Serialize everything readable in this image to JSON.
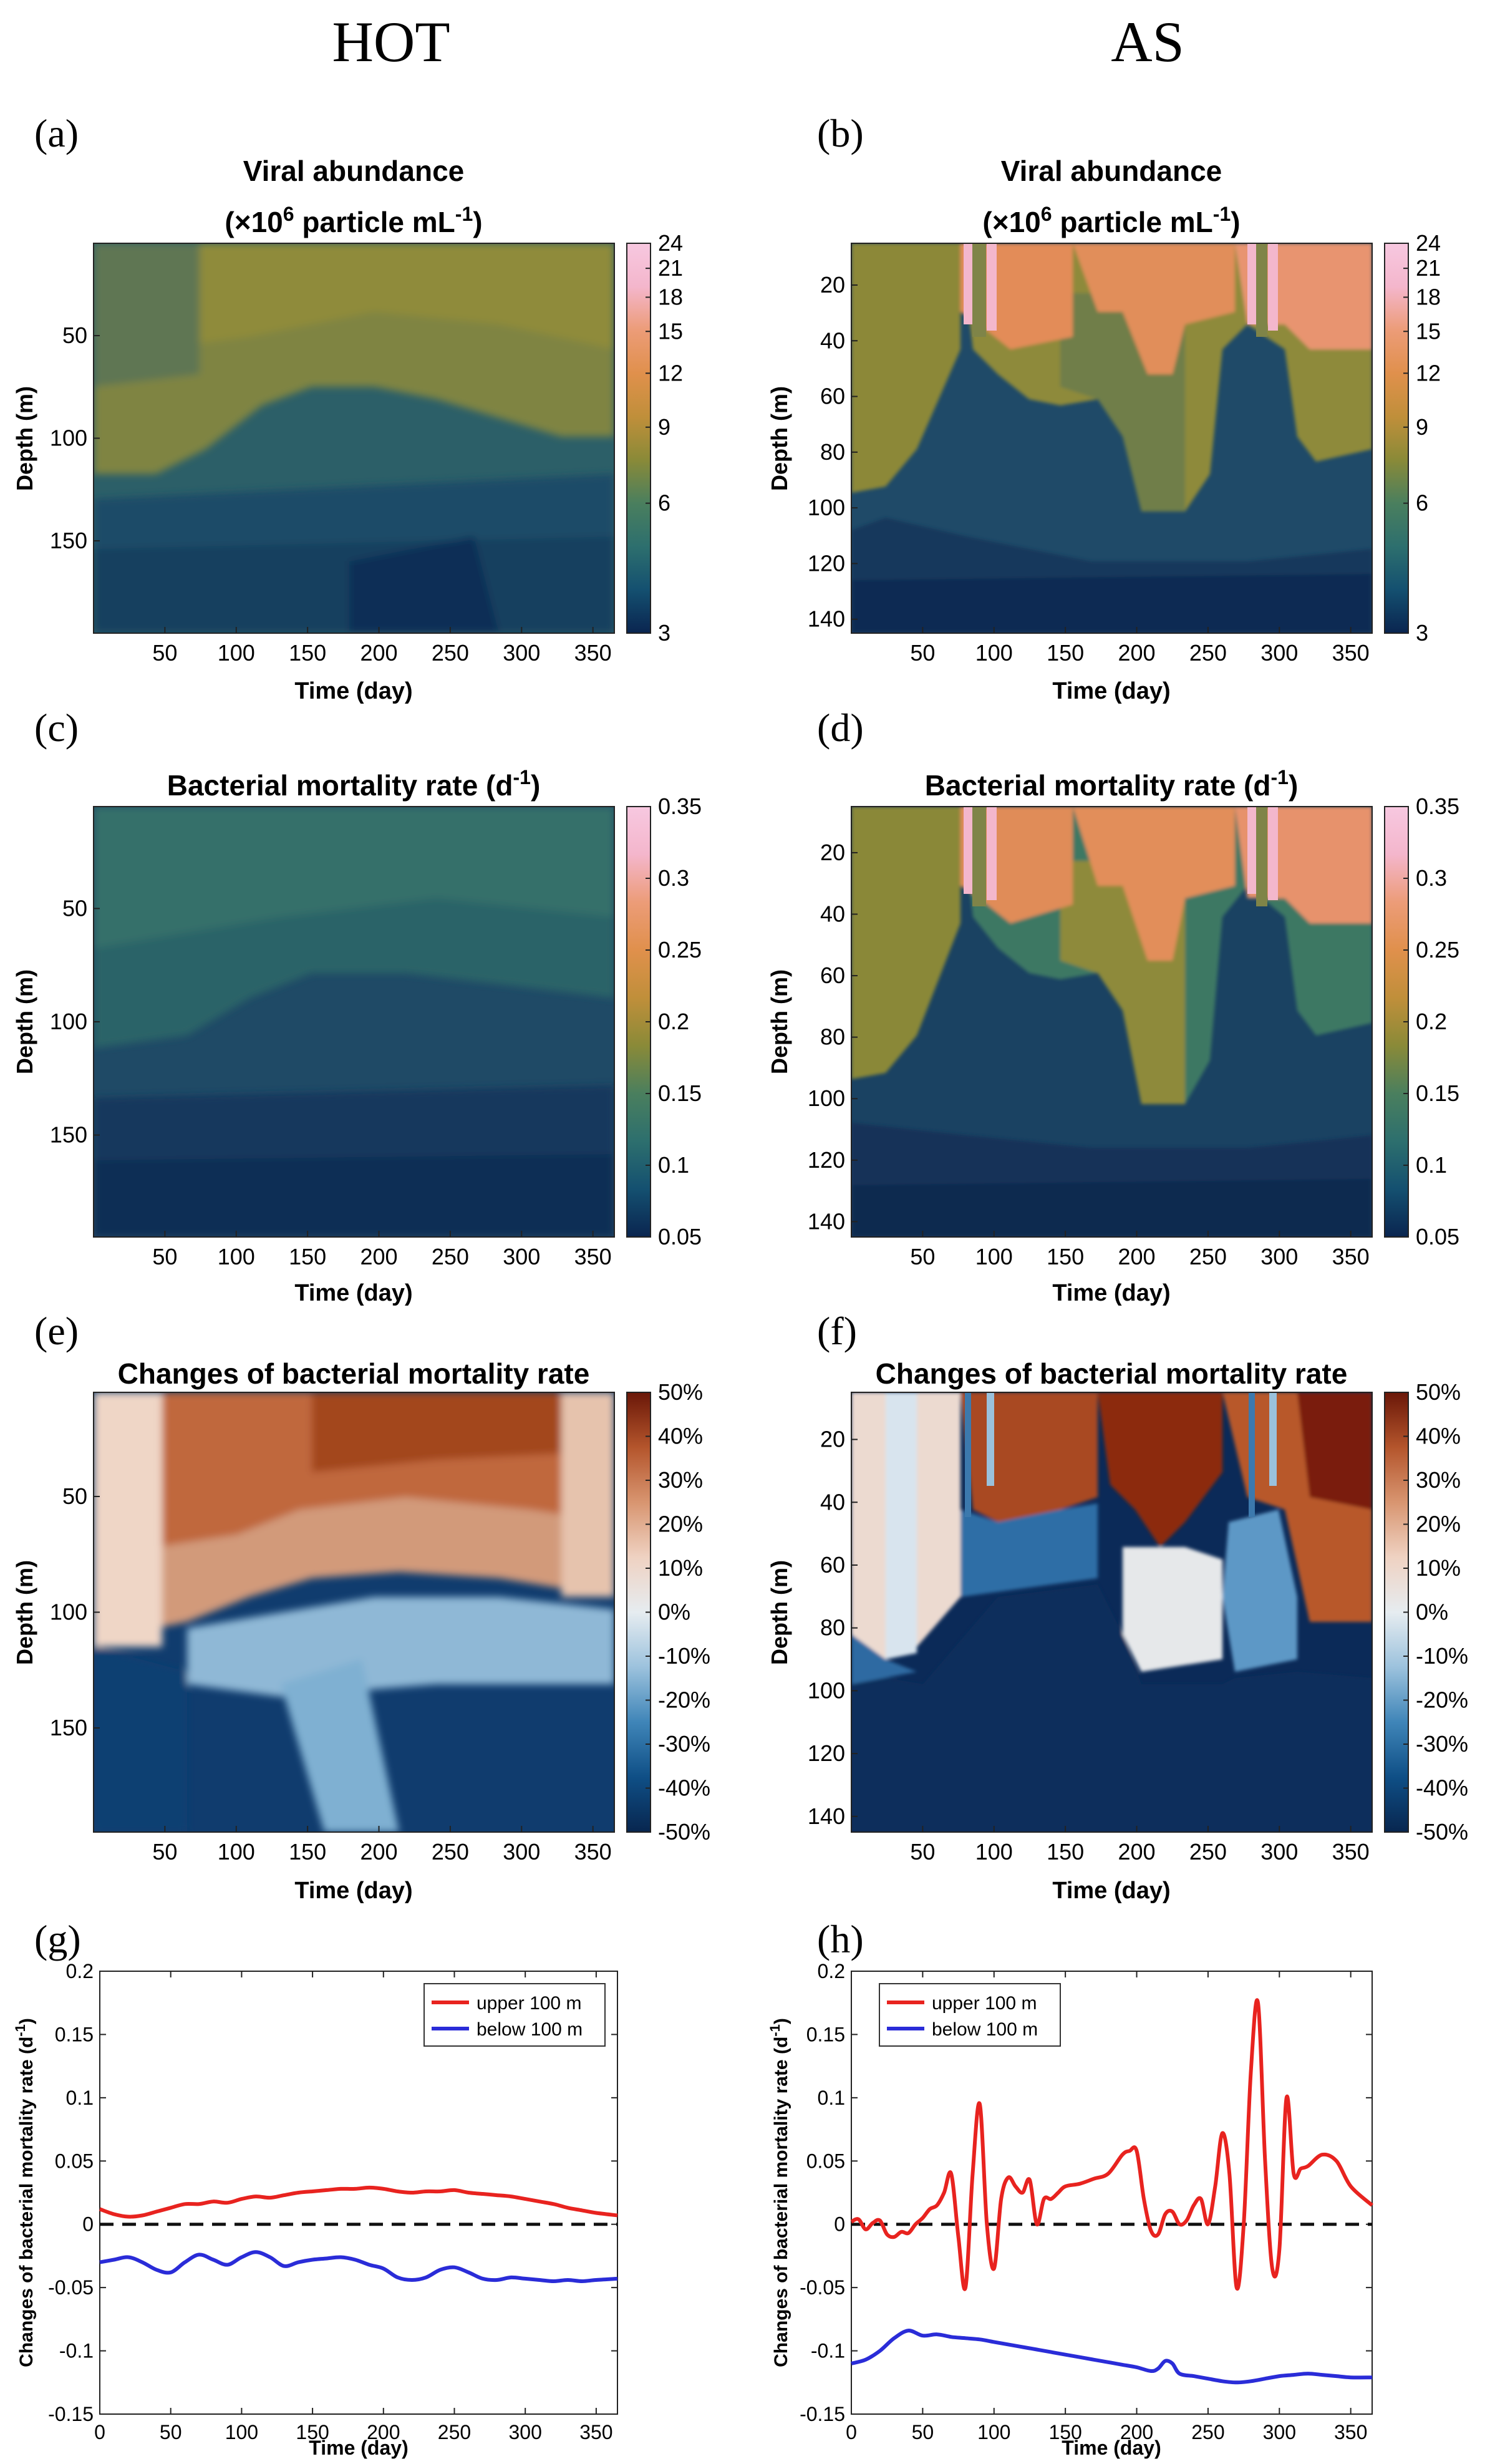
{
  "figure": {
    "columns": [
      "HOT",
      "AS"
    ]
  },
  "colors": {
    "seq_colormap": [
      "#0a2550",
      "#145070",
      "#2d6f6e",
      "#4a7f5e",
      "#8a8a38",
      "#c08f3a",
      "#e0904c",
      "#ec9c78",
      "#f4b6cc",
      "#f7c8e0"
    ],
    "div_colormap": [
      "#08264f",
      "#0f4f86",
      "#3f85b8",
      "#9cc2dd",
      "#e6ecf0",
      "#efd2c2",
      "#d89570",
      "#b4552c",
      "#6a1708"
    ],
    "upper_line": "#e8231f",
    "below_line": "#2a2cd8"
  },
  "chart_data": [
    {
      "panel_label": "(a)",
      "type": "heatmap",
      "site": "HOT",
      "title_line1": "Viral abundance",
      "title_line2": "(×10",
      "title_exp": "6",
      "title_unit": " particle mL",
      "title_unit_exp": "-1",
      "title_close": ")",
      "xlabel": "Time (day)",
      "ylabel": "Depth (m)",
      "xlim": [
        0,
        365
      ],
      "ylim": [
        5,
        195
      ],
      "xticks": [
        "50",
        "100",
        "150",
        "200",
        "250",
        "300",
        "350"
      ],
      "yticks": [
        "50",
        "100",
        "150"
      ],
      "colorbar_ticks": [
        "3",
        "6",
        "9",
        "12",
        "15",
        "18",
        "21",
        "24"
      ],
      "colorbar_range": [
        3,
        24
      ]
    },
    {
      "panel_label": "(b)",
      "type": "heatmap",
      "site": "AS",
      "title_line1": "Viral abundance",
      "title_line2": "(×10",
      "title_exp": "6",
      "title_unit": " particle mL",
      "title_unit_exp": "-1",
      "title_close": ")",
      "xlabel": "Time (day)",
      "ylabel": "Depth (m)",
      "xlim": [
        0,
        365
      ],
      "ylim": [
        5,
        145
      ],
      "xticks": [
        "50",
        "100",
        "150",
        "200",
        "250",
        "300",
        "350"
      ],
      "yticks": [
        "20",
        "40",
        "60",
        "80",
        "100",
        "120",
        "140"
      ],
      "colorbar_ticks": [
        "3",
        "6",
        "9",
        "12",
        "15",
        "18",
        "21",
        "24"
      ],
      "colorbar_range": [
        3,
        24
      ]
    },
    {
      "panel_label": "(c)",
      "type": "heatmap",
      "site": "HOT",
      "title_line1": "Bacterial mortality rate (d",
      "title_exp": "-1",
      "title_close": ")",
      "xlabel": "Time (day)",
      "ylabel": "Depth (m)",
      "xlim": [
        0,
        365
      ],
      "ylim": [
        5,
        195
      ],
      "xticks": [
        "50",
        "100",
        "150",
        "200",
        "250",
        "300",
        "350"
      ],
      "yticks": [
        "50",
        "100",
        "150"
      ],
      "colorbar_ticks": [
        "0.05",
        "0.1",
        "0.15",
        "0.2",
        "0.25",
        "0.3",
        "0.35"
      ],
      "colorbar_range": [
        0.05,
        0.35
      ]
    },
    {
      "panel_label": "(d)",
      "type": "heatmap",
      "site": "AS",
      "title_line1": "Bacterial mortality rate (d",
      "title_exp": "-1",
      "title_close": ")",
      "xlabel": "Time (day)",
      "ylabel": "Depth (m)",
      "xlim": [
        0,
        365
      ],
      "ylim": [
        5,
        145
      ],
      "xticks": [
        "50",
        "100",
        "150",
        "200",
        "250",
        "300",
        "350"
      ],
      "yticks": [
        "20",
        "40",
        "60",
        "80",
        "100",
        "120",
        "140"
      ],
      "colorbar_ticks": [
        "0.05",
        "0.1",
        "0.15",
        "0.2",
        "0.25",
        "0.3",
        "0.35"
      ],
      "colorbar_range": [
        0.05,
        0.35
      ]
    },
    {
      "panel_label": "(e)",
      "type": "heatmap",
      "site": "HOT",
      "title_line1": "Changes of bacterial mortality rate",
      "xlabel": "Time (day)",
      "ylabel": "Depth (m)",
      "xlim": [
        0,
        365
      ],
      "ylim": [
        5,
        195
      ],
      "xticks": [
        "50",
        "100",
        "150",
        "200",
        "250",
        "300",
        "350"
      ],
      "yticks": [
        "50",
        "100",
        "150"
      ],
      "colorbar_ticks": [
        "-50%",
        "-40%",
        "-30%",
        "-20%",
        "-10%",
        "0%",
        "10%",
        "20%",
        "30%",
        "40%",
        "50%"
      ],
      "colorbar_range": [
        -50,
        50
      ]
    },
    {
      "panel_label": "(f)",
      "type": "heatmap",
      "site": "AS",
      "title_line1": "Changes of bacterial mortality rate",
      "xlabel": "Time (day)",
      "ylabel": "Depth (m)",
      "xlim": [
        0,
        365
      ],
      "ylim": [
        5,
        145
      ],
      "xticks": [
        "50",
        "100",
        "150",
        "200",
        "250",
        "300",
        "350"
      ],
      "yticks": [
        "20",
        "40",
        "60",
        "80",
        "100",
        "120",
        "140"
      ],
      "colorbar_ticks": [
        "-50%",
        "-40%",
        "-30%",
        "-20%",
        "-10%",
        "0%",
        "10%",
        "20%",
        "30%",
        "40%",
        "50%"
      ],
      "colorbar_range": [
        -50,
        50
      ]
    },
    {
      "panel_label": "(g)",
      "type": "line",
      "site": "HOT",
      "xlabel": "Time (day)",
      "ylabel": "Changes of bacterial mortality rate (d",
      "ylabel_exp": "-1",
      "ylabel_close": ")",
      "xlim": [
        0,
        365
      ],
      "ylim": [
        -0.15,
        0.2
      ],
      "xticks": [
        "0",
        "50",
        "100",
        "150",
        "200",
        "250",
        "300",
        "350"
      ],
      "yticks": [
        "-0.15",
        "-0.1",
        "-0.05",
        "0",
        "0.05",
        "0.1",
        "0.15",
        "0.2"
      ],
      "legend": [
        "upper 100 m",
        "below 100 m"
      ],
      "legend_position": "top-right",
      "series": [
        {
          "name": "upper 100 m",
          "x": [
            0,
            10,
            20,
            30,
            40,
            50,
            60,
            70,
            80,
            90,
            100,
            110,
            120,
            130,
            140,
            150,
            160,
            170,
            180,
            190,
            200,
            210,
            220,
            230,
            240,
            250,
            260,
            270,
            280,
            290,
            300,
            310,
            320,
            330,
            340,
            350,
            365
          ],
          "y": [
            0.012,
            0.008,
            0.006,
            0.007,
            0.01,
            0.013,
            0.016,
            0.016,
            0.018,
            0.017,
            0.02,
            0.022,
            0.021,
            0.023,
            0.025,
            0.026,
            0.027,
            0.028,
            0.028,
            0.029,
            0.028,
            0.026,
            0.025,
            0.026,
            0.026,
            0.027,
            0.025,
            0.024,
            0.023,
            0.022,
            0.02,
            0.018,
            0.016,
            0.013,
            0.011,
            0.009,
            0.007
          ]
        },
        {
          "name": "below 100 m",
          "x": [
            0,
            10,
            20,
            30,
            40,
            50,
            60,
            70,
            80,
            90,
            100,
            110,
            120,
            130,
            140,
            150,
            160,
            170,
            180,
            190,
            200,
            210,
            220,
            230,
            240,
            250,
            260,
            270,
            280,
            290,
            300,
            310,
            320,
            330,
            340,
            350,
            365
          ],
          "y": [
            -0.03,
            -0.028,
            -0.026,
            -0.03,
            -0.036,
            -0.038,
            -0.03,
            -0.024,
            -0.028,
            -0.032,
            -0.026,
            -0.022,
            -0.026,
            -0.033,
            -0.03,
            -0.028,
            -0.027,
            -0.026,
            -0.028,
            -0.032,
            -0.035,
            -0.042,
            -0.044,
            -0.042,
            -0.036,
            -0.034,
            -0.038,
            -0.043,
            -0.044,
            -0.042,
            -0.043,
            -0.044,
            -0.045,
            -0.044,
            -0.045,
            -0.044,
            -0.043
          ]
        }
      ],
      "reference_line": 0
    },
    {
      "panel_label": "(h)",
      "type": "line",
      "site": "AS",
      "xlabel": "Time (day)",
      "ylabel": "Changes of bacterial mortality rate (d",
      "ylabel_exp": "-1",
      "ylabel_close": ")",
      "xlim": [
        0,
        365
      ],
      "ylim": [
        -0.15,
        0.2
      ],
      "xticks": [
        "0",
        "50",
        "100",
        "150",
        "200",
        "250",
        "300",
        "350"
      ],
      "yticks": [
        "-0.15",
        "-0.1",
        "-0.05",
        "0",
        "0.05",
        "0.1",
        "0.15",
        "0.2"
      ],
      "legend": [
        "upper 100 m",
        "below 100 m"
      ],
      "legend_position": "top-left",
      "series": [
        {
          "name": "upper 100 m",
          "x": [
            0,
            5,
            10,
            15,
            20,
            25,
            30,
            35,
            40,
            45,
            50,
            55,
            60,
            65,
            70,
            75,
            80,
            85,
            90,
            95,
            100,
            105,
            110,
            115,
            120,
            125,
            130,
            135,
            140,
            145,
            150,
            160,
            170,
            180,
            190,
            195,
            200,
            205,
            210,
            215,
            220,
            225,
            230,
            235,
            240,
            245,
            250,
            255,
            260,
            265,
            270,
            275,
            280,
            285,
            290,
            295,
            300,
            305,
            310,
            315,
            320,
            330,
            340,
            350,
            365
          ],
          "y": [
            0.002,
            0.004,
            -0.004,
            0.001,
            0.003,
            -0.008,
            -0.01,
            -0.006,
            -0.007,
            0.0,
            0.005,
            0.012,
            0.015,
            0.025,
            0.04,
            -0.01,
            -0.05,
            0.04,
            0.095,
            0.0,
            -0.035,
            0.02,
            0.037,
            0.03,
            0.025,
            0.035,
            0.0,
            0.02,
            0.02,
            0.025,
            0.03,
            0.032,
            0.036,
            0.04,
            0.055,
            0.058,
            0.058,
            0.02,
            -0.005,
            -0.008,
            0.008,
            0.01,
            0.0,
            0.003,
            0.015,
            0.02,
            0.0,
            0.03,
            0.072,
            0.04,
            -0.05,
            0.0,
            0.12,
            0.175,
            0.05,
            -0.035,
            -0.02,
            0.1,
            0.04,
            0.044,
            0.046,
            0.055,
            0.05,
            0.03,
            0.015
          ]
        },
        {
          "name": "below 100 m",
          "x": [
            0,
            10,
            20,
            30,
            40,
            50,
            60,
            70,
            80,
            90,
            100,
            110,
            120,
            130,
            140,
            150,
            160,
            170,
            180,
            190,
            200,
            210,
            215,
            220,
            225,
            230,
            240,
            250,
            260,
            270,
            280,
            290,
            300,
            310,
            320,
            330,
            340,
            350,
            365
          ],
          "y": [
            -0.11,
            -0.107,
            -0.1,
            -0.09,
            -0.084,
            -0.088,
            -0.087,
            -0.089,
            -0.09,
            -0.091,
            -0.093,
            -0.095,
            -0.097,
            -0.099,
            -0.101,
            -0.103,
            -0.105,
            -0.107,
            -0.109,
            -0.111,
            -0.113,
            -0.116,
            -0.114,
            -0.108,
            -0.11,
            -0.118,
            -0.12,
            -0.122,
            -0.124,
            -0.125,
            -0.124,
            -0.122,
            -0.12,
            -0.119,
            -0.118,
            -0.119,
            -0.12,
            -0.121,
            -0.121
          ]
        }
      ],
      "reference_line": 0
    }
  ]
}
